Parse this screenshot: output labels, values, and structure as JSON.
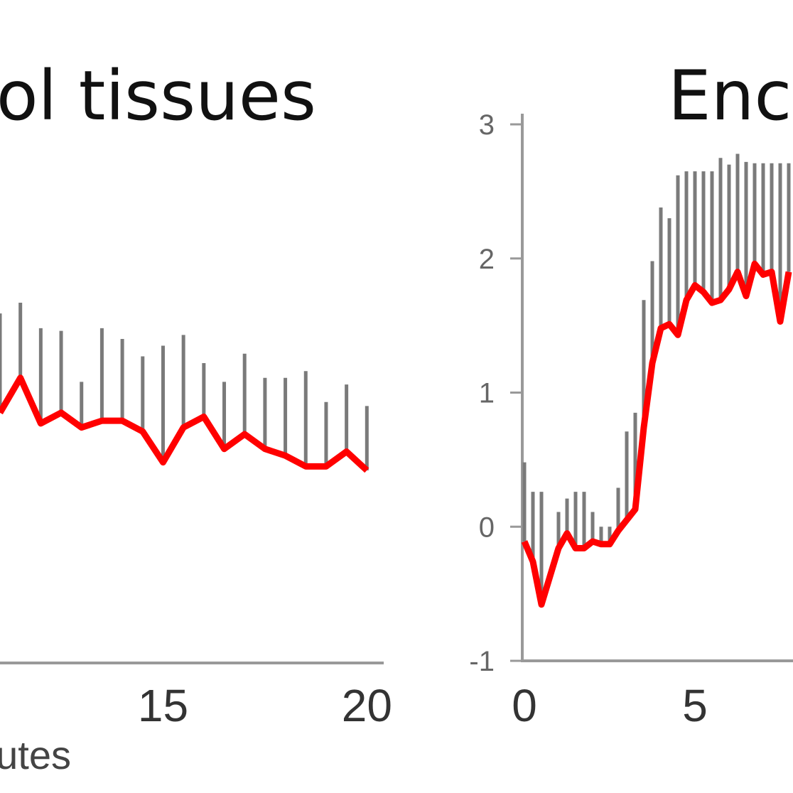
{
  "chart_data": [
    {
      "type": "line",
      "title": "ol tissues",
      "xlabel": "utes",
      "xlim": [
        11,
        20.5
      ],
      "ylim": [
        -1,
        3
      ],
      "xticks": [
        15,
        20
      ],
      "x": [
        11,
        11.5,
        12,
        12.5,
        13,
        13.5,
        14,
        14.5,
        15,
        15.5,
        16,
        16.5,
        17,
        17.5,
        18,
        18.5,
        19,
        19.5,
        20
      ],
      "series": [
        {
          "color": "#ff0000",
          "kind": "line",
          "values": [
            0.85,
            1.11,
            0.77,
            0.85,
            0.74,
            0.79,
            0.79,
            0.71,
            0.48,
            0.74,
            0.82,
            0.58,
            0.69,
            0.58,
            0.53,
            0.45,
            0.45,
            0.56,
            0.42
          ]
        },
        {
          "color": "#7a7a7a",
          "kind": "stem",
          "values": [
            1.59,
            1.67,
            1.48,
            1.46,
            1.08,
            1.48,
            1.4,
            1.27,
            1.35,
            1.43,
            1.22,
            1.08,
            1.29,
            1.11,
            1.11,
            1.16,
            0.93,
            1.06,
            0.9
          ]
        }
      ]
    },
    {
      "type": "line",
      "title": "Enc",
      "xlim": [
        0,
        7.875
      ],
      "ylim": [
        -1,
        3
      ],
      "xticks": [
        0,
        5
      ],
      "yticks": [
        -1,
        0,
        1,
        2,
        3
      ],
      "x": [
        0,
        0.25,
        0.5,
        0.75,
        1,
        1.25,
        1.5,
        1.75,
        2,
        2.25,
        2.5,
        2.75,
        3,
        3.25,
        3.5,
        3.75,
        4,
        4.25,
        4.5,
        4.75,
        5,
        5.25,
        5.5,
        5.75,
        6,
        6.25,
        6.5,
        6.75,
        7,
        7.25,
        7.5,
        7.75
      ],
      "series": [
        {
          "color": "#ff0000",
          "kind": "line",
          "values": [
            -0.11,
            -0.26,
            -0.58,
            -0.37,
            -0.16,
            -0.05,
            -0.16,
            -0.16,
            -0.11,
            -0.13,
            -0.13,
            -0.03,
            0.05,
            0.13,
            0.74,
            1.22,
            1.48,
            1.51,
            1.43,
            1.69,
            1.8,
            1.75,
            1.67,
            1.69,
            1.77,
            1.9,
            1.72,
            1.96,
            1.88,
            1.9,
            1.53,
            1.9
          ]
        },
        {
          "color": "#7a7a7a",
          "kind": "stem",
          "values": [
            0.48,
            0.26,
            0.26,
            -0.37,
            0.11,
            0.21,
            0.26,
            0.26,
            0.11,
            0,
            0,
            0.29,
            0.71,
            0.85,
            1.69,
            1.98,
            2.38,
            2.3,
            2.62,
            2.65,
            2.65,
            2.65,
            2.65,
            2.75,
            2.7,
            2.78,
            2.72,
            2.71,
            2.71,
            2.71,
            2.71,
            2.71
          ]
        }
      ]
    }
  ]
}
